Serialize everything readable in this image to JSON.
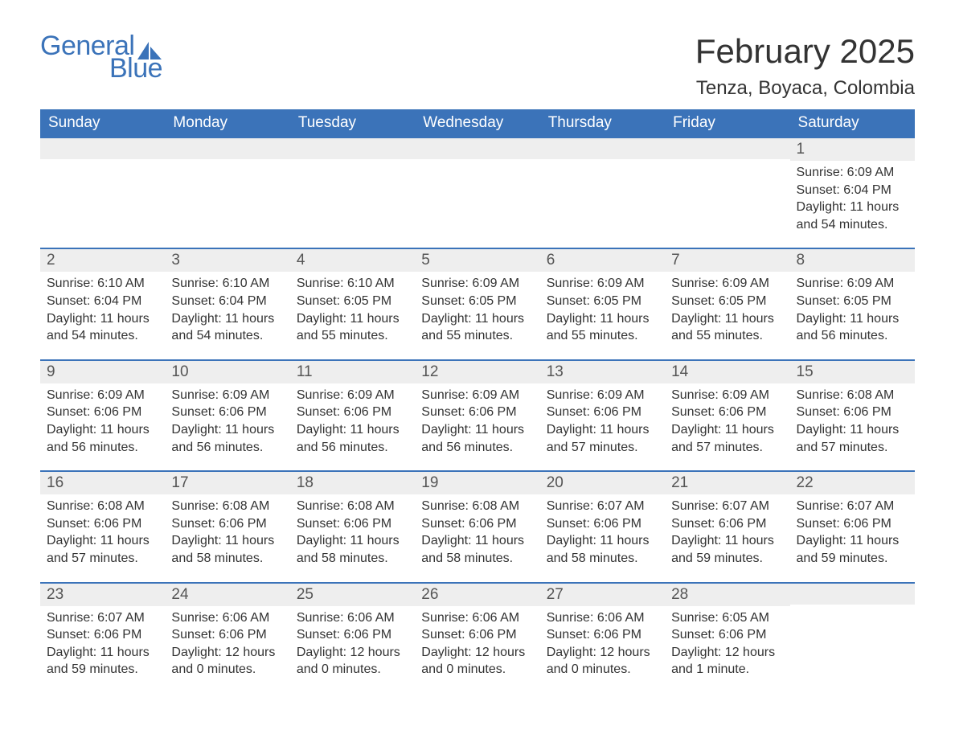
{
  "logo": {
    "text_general": "General",
    "text_blue": "Blue",
    "color": "#3b73b9"
  },
  "title": "February 2025",
  "location": "Tenza, Boyaca, Colombia",
  "colors": {
    "header_bg": "#3b73b9",
    "header_fg": "#ffffff",
    "daynum_bg": "#eeeeee",
    "row_border": "#3b73b9",
    "text": "#333333",
    "background": "#ffffff"
  },
  "typography": {
    "title_fontsize": 42,
    "location_fontsize": 24,
    "dow_fontsize": 19,
    "daynum_fontsize": 19,
    "body_fontsize": 16
  },
  "days_of_week": [
    "Sunday",
    "Monday",
    "Tuesday",
    "Wednesday",
    "Thursday",
    "Friday",
    "Saturday"
  ],
  "weeks": [
    [
      {
        "n": "",
        "sr": "",
        "ss": "",
        "dl": ""
      },
      {
        "n": "",
        "sr": "",
        "ss": "",
        "dl": ""
      },
      {
        "n": "",
        "sr": "",
        "ss": "",
        "dl": ""
      },
      {
        "n": "",
        "sr": "",
        "ss": "",
        "dl": ""
      },
      {
        "n": "",
        "sr": "",
        "ss": "",
        "dl": ""
      },
      {
        "n": "",
        "sr": "",
        "ss": "",
        "dl": ""
      },
      {
        "n": "1",
        "sr": "Sunrise: 6:09 AM",
        "ss": "Sunset: 6:04 PM",
        "dl": "Daylight: 11 hours and 54 minutes."
      }
    ],
    [
      {
        "n": "2",
        "sr": "Sunrise: 6:10 AM",
        "ss": "Sunset: 6:04 PM",
        "dl": "Daylight: 11 hours and 54 minutes."
      },
      {
        "n": "3",
        "sr": "Sunrise: 6:10 AM",
        "ss": "Sunset: 6:04 PM",
        "dl": "Daylight: 11 hours and 54 minutes."
      },
      {
        "n": "4",
        "sr": "Sunrise: 6:10 AM",
        "ss": "Sunset: 6:05 PM",
        "dl": "Daylight: 11 hours and 55 minutes."
      },
      {
        "n": "5",
        "sr": "Sunrise: 6:09 AM",
        "ss": "Sunset: 6:05 PM",
        "dl": "Daylight: 11 hours and 55 minutes."
      },
      {
        "n": "6",
        "sr": "Sunrise: 6:09 AM",
        "ss": "Sunset: 6:05 PM",
        "dl": "Daylight: 11 hours and 55 minutes."
      },
      {
        "n": "7",
        "sr": "Sunrise: 6:09 AM",
        "ss": "Sunset: 6:05 PM",
        "dl": "Daylight: 11 hours and 55 minutes."
      },
      {
        "n": "8",
        "sr": "Sunrise: 6:09 AM",
        "ss": "Sunset: 6:05 PM",
        "dl": "Daylight: 11 hours and 56 minutes."
      }
    ],
    [
      {
        "n": "9",
        "sr": "Sunrise: 6:09 AM",
        "ss": "Sunset: 6:06 PM",
        "dl": "Daylight: 11 hours and 56 minutes."
      },
      {
        "n": "10",
        "sr": "Sunrise: 6:09 AM",
        "ss": "Sunset: 6:06 PM",
        "dl": "Daylight: 11 hours and 56 minutes."
      },
      {
        "n": "11",
        "sr": "Sunrise: 6:09 AM",
        "ss": "Sunset: 6:06 PM",
        "dl": "Daylight: 11 hours and 56 minutes."
      },
      {
        "n": "12",
        "sr": "Sunrise: 6:09 AM",
        "ss": "Sunset: 6:06 PM",
        "dl": "Daylight: 11 hours and 56 minutes."
      },
      {
        "n": "13",
        "sr": "Sunrise: 6:09 AM",
        "ss": "Sunset: 6:06 PM",
        "dl": "Daylight: 11 hours and 57 minutes."
      },
      {
        "n": "14",
        "sr": "Sunrise: 6:09 AM",
        "ss": "Sunset: 6:06 PM",
        "dl": "Daylight: 11 hours and 57 minutes."
      },
      {
        "n": "15",
        "sr": "Sunrise: 6:08 AM",
        "ss": "Sunset: 6:06 PM",
        "dl": "Daylight: 11 hours and 57 minutes."
      }
    ],
    [
      {
        "n": "16",
        "sr": "Sunrise: 6:08 AM",
        "ss": "Sunset: 6:06 PM",
        "dl": "Daylight: 11 hours and 57 minutes."
      },
      {
        "n": "17",
        "sr": "Sunrise: 6:08 AM",
        "ss": "Sunset: 6:06 PM",
        "dl": "Daylight: 11 hours and 58 minutes."
      },
      {
        "n": "18",
        "sr": "Sunrise: 6:08 AM",
        "ss": "Sunset: 6:06 PM",
        "dl": "Daylight: 11 hours and 58 minutes."
      },
      {
        "n": "19",
        "sr": "Sunrise: 6:08 AM",
        "ss": "Sunset: 6:06 PM",
        "dl": "Daylight: 11 hours and 58 minutes."
      },
      {
        "n": "20",
        "sr": "Sunrise: 6:07 AM",
        "ss": "Sunset: 6:06 PM",
        "dl": "Daylight: 11 hours and 58 minutes."
      },
      {
        "n": "21",
        "sr": "Sunrise: 6:07 AM",
        "ss": "Sunset: 6:06 PM",
        "dl": "Daylight: 11 hours and 59 minutes."
      },
      {
        "n": "22",
        "sr": "Sunrise: 6:07 AM",
        "ss": "Sunset: 6:06 PM",
        "dl": "Daylight: 11 hours and 59 minutes."
      }
    ],
    [
      {
        "n": "23",
        "sr": "Sunrise: 6:07 AM",
        "ss": "Sunset: 6:06 PM",
        "dl": "Daylight: 11 hours and 59 minutes."
      },
      {
        "n": "24",
        "sr": "Sunrise: 6:06 AM",
        "ss": "Sunset: 6:06 PM",
        "dl": "Daylight: 12 hours and 0 minutes."
      },
      {
        "n": "25",
        "sr": "Sunrise: 6:06 AM",
        "ss": "Sunset: 6:06 PM",
        "dl": "Daylight: 12 hours and 0 minutes."
      },
      {
        "n": "26",
        "sr": "Sunrise: 6:06 AM",
        "ss": "Sunset: 6:06 PM",
        "dl": "Daylight: 12 hours and 0 minutes."
      },
      {
        "n": "27",
        "sr": "Sunrise: 6:06 AM",
        "ss": "Sunset: 6:06 PM",
        "dl": "Daylight: 12 hours and 0 minutes."
      },
      {
        "n": "28",
        "sr": "Sunrise: 6:05 AM",
        "ss": "Sunset: 6:06 PM",
        "dl": "Daylight: 12 hours and 1 minute."
      },
      {
        "n": "",
        "sr": "",
        "ss": "",
        "dl": ""
      }
    ]
  ]
}
